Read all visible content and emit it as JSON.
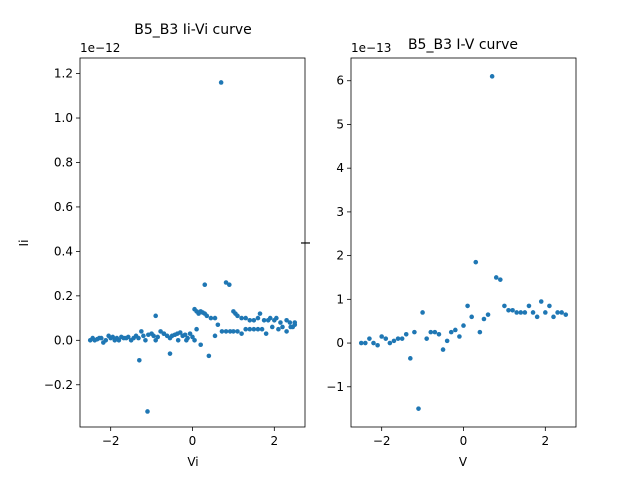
{
  "figure": {
    "background": "#ffffff",
    "marker_color": "#1f77b4"
  },
  "chart_data": [
    {
      "type": "scatter",
      "title": "B5_B3 Ii-Vi curve",
      "xlabel": "Vi",
      "ylabel": "Ii",
      "y_offset_text": "1e−12",
      "xlim": [
        -2.75,
        2.75
      ],
      "ylim": [
        -0.39,
        1.27
      ],
      "xticks": [
        -2,
        0,
        2
      ],
      "xtick_labels": [
        "−2",
        "0",
        "2"
      ],
      "yticks": [
        -0.2,
        0.0,
        0.2,
        0.4,
        0.6,
        0.8,
        1.0,
        1.2
      ],
      "ytick_labels": [
        "−0.2",
        "0.0",
        "0.2",
        "0.4",
        "0.6",
        "0.8",
        "1.0",
        "1.2"
      ],
      "series": [
        {
          "points": [
            [
              -2.5,
              0.0
            ],
            [
              -2.44,
              0.01
            ],
            [
              -2.39,
              0.0
            ],
            [
              -2.33,
              0.005
            ],
            [
              -2.28,
              0.01
            ],
            [
              -2.23,
              0.01
            ],
            [
              -2.18,
              -0.01
            ],
            [
              -2.12,
              0.0
            ],
            [
              -2.05,
              0.02
            ],
            [
              -2.0,
              0.01
            ],
            [
              -1.95,
              0.015
            ],
            [
              -1.9,
              0.0
            ],
            [
              -1.85,
              0.01
            ],
            [
              -1.8,
              0.0
            ],
            [
              -1.74,
              0.015
            ],
            [
              -1.68,
              0.01
            ],
            [
              -1.62,
              0.01
            ],
            [
              -1.57,
              0.015
            ],
            [
              -1.5,
              0.0
            ],
            [
              -1.44,
              0.01
            ],
            [
              -1.38,
              0.02
            ],
            [
              -1.32,
              0.01
            ],
            [
              -1.25,
              0.04
            ],
            [
              -1.2,
              0.02
            ],
            [
              -1.15,
              0.0
            ],
            [
              -1.08,
              0.025
            ],
            [
              -1.0,
              0.03
            ],
            [
              -0.95,
              0.02
            ],
            [
              -0.9,
              0.0
            ],
            [
              -0.85,
              0.015
            ],
            [
              -0.78,
              0.04
            ],
            [
              -0.7,
              0.03
            ],
            [
              -0.62,
              0.02
            ],
            [
              -0.55,
              0.01
            ],
            [
              -0.5,
              0.02
            ],
            [
              -0.43,
              0.025
            ],
            [
              -0.37,
              0.03
            ],
            [
              -0.3,
              0.035
            ],
            [
              -0.24,
              0.02
            ],
            [
              -0.18,
              0.025
            ],
            [
              -0.12,
              0.01
            ],
            [
              -0.06,
              0.03
            ],
            [
              0.0,
              0.015
            ],
            [
              0.05,
              0.14
            ],
            [
              0.1,
              0.13
            ],
            [
              0.15,
              0.12
            ],
            [
              0.2,
              0.13
            ],
            [
              0.25,
              0.125
            ],
            [
              0.3,
              0.12
            ],
            [
              0.35,
              0.11
            ],
            [
              0.45,
              0.1
            ],
            [
              0.55,
              0.1
            ],
            [
              0.62,
              0.07
            ],
            [
              0.72,
              0.04
            ],
            [
              0.82,
              0.04
            ],
            [
              0.92,
              0.04
            ],
            [
              1.0,
              0.13
            ],
            [
              1.05,
              0.12
            ],
            [
              1.1,
              0.11
            ],
            [
              1.2,
              0.1
            ],
            [
              1.3,
              0.1
            ],
            [
              1.4,
              0.09
            ],
            [
              1.5,
              0.09
            ],
            [
              1.6,
              0.1
            ],
            [
              1.65,
              0.12
            ],
            [
              1.75,
              0.09
            ],
            [
              1.85,
              0.09
            ],
            [
              1.9,
              0.1
            ],
            [
              2.0,
              0.09
            ],
            [
              2.05,
              0.1
            ],
            [
              2.15,
              0.08
            ],
            [
              2.2,
              0.06
            ],
            [
              2.3,
              0.09
            ],
            [
              2.38,
              0.08
            ],
            [
              2.45,
              0.06
            ],
            [
              2.5,
              0.07
            ],
            [
              -1.3,
              -0.09
            ],
            [
              -1.1,
              -0.32
            ],
            [
              -0.9,
              0.11
            ],
            [
              -0.7,
              0.03
            ],
            [
              -0.55,
              -0.06
            ],
            [
              -0.35,
              0.0
            ],
            [
              -0.15,
              0.0
            ],
            [
              0.05,
              0.0
            ],
            [
              0.1,
              0.05
            ],
            [
              0.2,
              -0.02
            ],
            [
              0.3,
              0.25
            ],
            [
              0.4,
              -0.07
            ],
            [
              0.55,
              0.02
            ],
            [
              0.7,
              1.16
            ],
            [
              0.82,
              0.26
            ],
            [
              0.9,
              0.25
            ],
            [
              1.0,
              0.04
            ],
            [
              1.1,
              0.04
            ],
            [
              1.2,
              0.03
            ],
            [
              1.3,
              0.05
            ],
            [
              1.4,
              0.05
            ],
            [
              1.5,
              0.05
            ],
            [
              1.6,
              0.05
            ],
            [
              1.7,
              0.05
            ],
            [
              1.8,
              0.03
            ],
            [
              1.95,
              0.06
            ],
            [
              2.1,
              0.05
            ],
            [
              2.3,
              0.04
            ],
            [
              2.4,
              0.06
            ],
            [
              2.5,
              0.08
            ]
          ]
        }
      ]
    },
    {
      "type": "scatter",
      "title": "B5_B3 I-V curve",
      "xlabel": "V",
      "ylabel": "I",
      "y_offset_text": "1e−13",
      "xlim": [
        -2.75,
        2.75
      ],
      "ylim": [
        -1.92,
        6.52
      ],
      "xticks": [
        -2,
        0,
        2
      ],
      "xtick_labels": [
        "−2",
        "0",
        "2"
      ],
      "yticks": [
        -1,
        0,
        1,
        2,
        3,
        4,
        5,
        6
      ],
      "ytick_labels": [
        "−1",
        "0",
        "1",
        "2",
        "3",
        "4",
        "5",
        "6"
      ],
      "series": [
        {
          "points": [
            [
              -2.5,
              0.0
            ],
            [
              -2.4,
              0.0
            ],
            [
              -2.3,
              0.1
            ],
            [
              -2.2,
              0.0
            ],
            [
              -2.1,
              -0.05
            ],
            [
              -2.0,
              0.15
            ],
            [
              -1.9,
              0.1
            ],
            [
              -1.8,
              0.0
            ],
            [
              -1.7,
              0.05
            ],
            [
              -1.6,
              0.1
            ],
            [
              -1.5,
              0.1
            ],
            [
              -1.4,
              0.2
            ],
            [
              -1.3,
              -0.35
            ],
            [
              -1.2,
              0.25
            ],
            [
              -1.1,
              -1.5
            ],
            [
              -1.0,
              0.7
            ],
            [
              -0.9,
              0.1
            ],
            [
              -0.8,
              0.25
            ],
            [
              -0.7,
              0.25
            ],
            [
              -0.6,
              0.2
            ],
            [
              -0.5,
              -0.15
            ],
            [
              -0.4,
              0.05
            ],
            [
              -0.3,
              0.25
            ],
            [
              -0.2,
              0.3
            ],
            [
              -0.1,
              0.15
            ],
            [
              0.0,
              0.4
            ],
            [
              0.1,
              0.85
            ],
            [
              0.2,
              0.6
            ],
            [
              0.3,
              1.85
            ],
            [
              0.4,
              0.25
            ],
            [
              0.5,
              0.55
            ],
            [
              0.6,
              0.65
            ],
            [
              0.7,
              6.1
            ],
            [
              0.8,
              1.5
            ],
            [
              0.9,
              1.45
            ],
            [
              1.0,
              0.85
            ],
            [
              1.1,
              0.75
            ],
            [
              1.2,
              0.75
            ],
            [
              1.3,
              0.7
            ],
            [
              1.4,
              0.7
            ],
            [
              1.5,
              0.7
            ],
            [
              1.6,
              0.85
            ],
            [
              1.7,
              0.7
            ],
            [
              1.8,
              0.6
            ],
            [
              1.9,
              0.95
            ],
            [
              2.0,
              0.7
            ],
            [
              2.1,
              0.85
            ],
            [
              2.2,
              0.6
            ],
            [
              2.3,
              0.7
            ],
            [
              2.4,
              0.7
            ],
            [
              2.5,
              0.65
            ]
          ]
        }
      ]
    }
  ]
}
